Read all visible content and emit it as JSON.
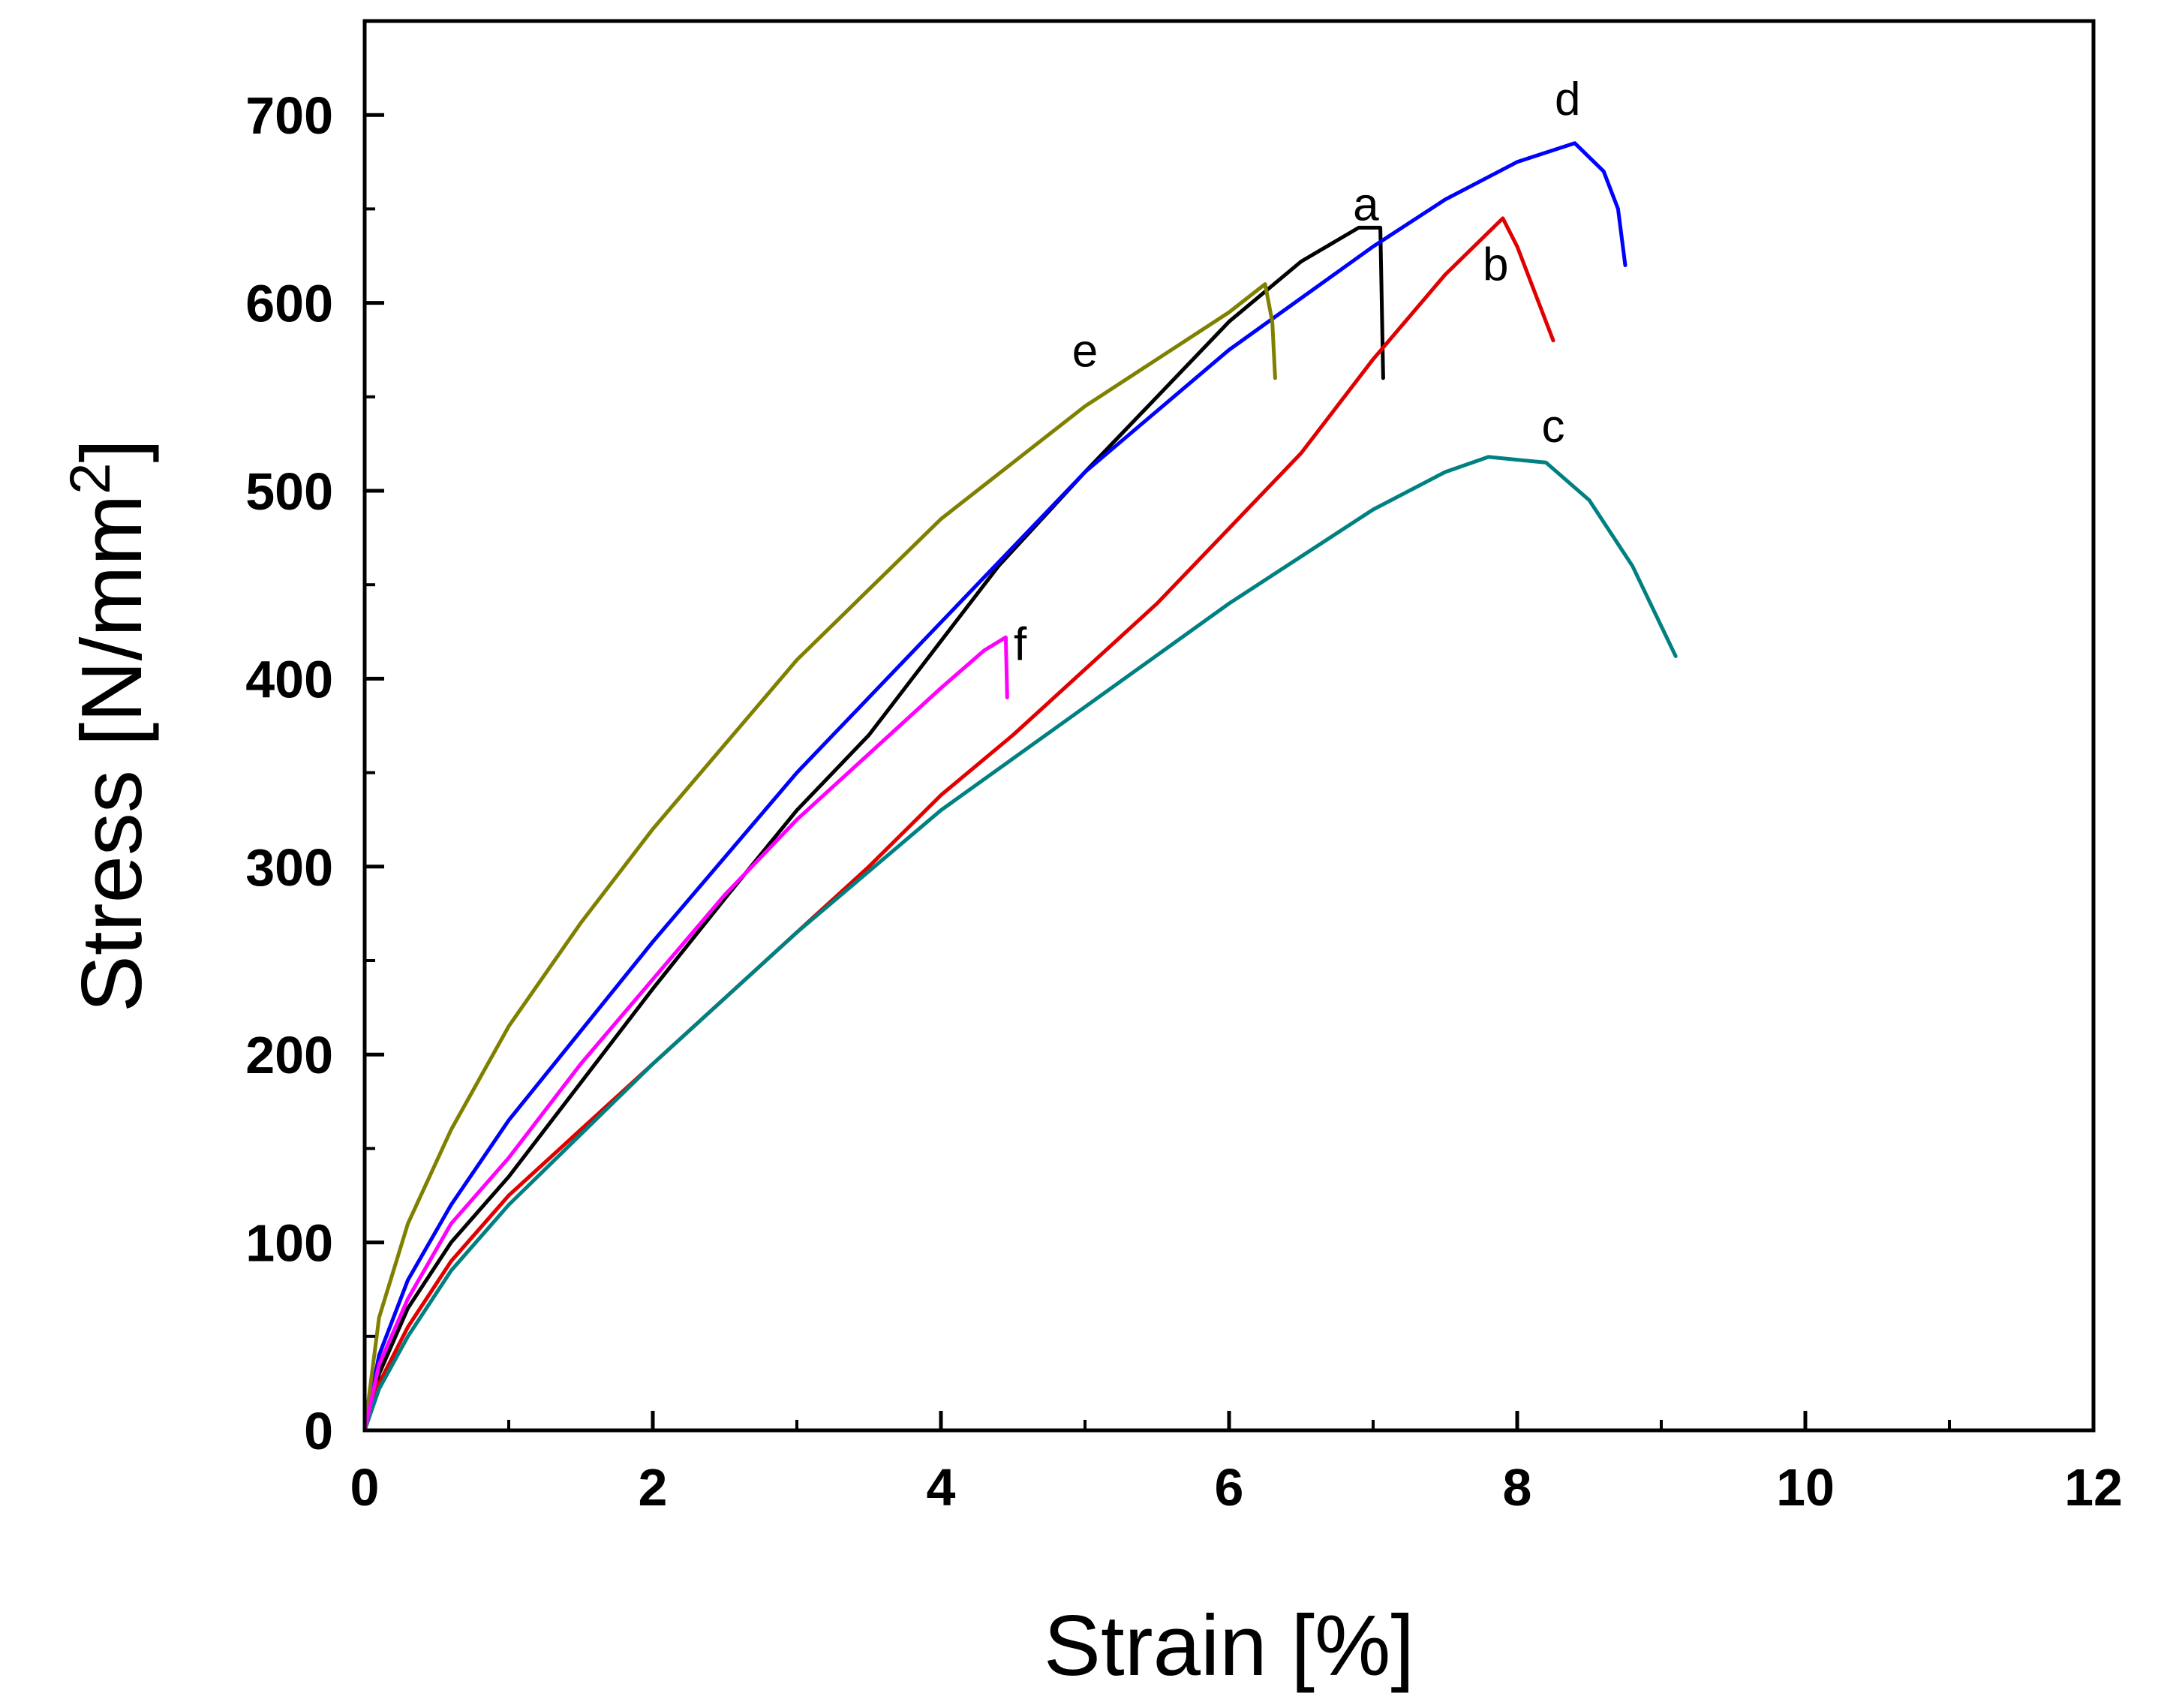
{
  "chart_data": {
    "type": "line",
    "title": "",
    "xlabel": "Strain [%]",
    "ylabel_main": "Stress [N/mm",
    "ylabel_sup": "2",
    "ylabel_close": "]",
    "xlim": [
      0,
      12
    ],
    "ylim": [
      0,
      750
    ],
    "xticks": [
      "0",
      "2",
      "4",
      "6",
      "8",
      "10",
      "12"
    ],
    "yticks": [
      "0",
      "100",
      "200",
      "300",
      "400",
      "500",
      "600",
      "700"
    ],
    "grid": false,
    "series": [
      {
        "name": "a",
        "color": "#000000",
        "label_at": [
          6.95,
          644
        ],
        "points": [
          [
            0,
            0
          ],
          [
            0.1,
            30
          ],
          [
            0.3,
            65
          ],
          [
            0.6,
            100
          ],
          [
            1.0,
            135
          ],
          [
            1.5,
            185
          ],
          [
            2.0,
            235
          ],
          [
            2.5,
            283
          ],
          [
            3.0,
            330
          ],
          [
            3.5,
            370
          ],
          [
            3.8,
            400
          ],
          [
            4.0,
            420
          ],
          [
            4.4,
            460
          ],
          [
            5.0,
            510
          ],
          [
            5.5,
            550
          ],
          [
            6.0,
            590
          ],
          [
            6.5,
            622
          ],
          [
            6.9,
            640
          ],
          [
            7.05,
            640
          ],
          [
            7.07,
            560
          ]
        ]
      },
      {
        "name": "b",
        "color": "#e00000",
        "label_at": [
          7.85,
          612
        ],
        "points": [
          [
            0,
            0
          ],
          [
            0.1,
            25
          ],
          [
            0.3,
            55
          ],
          [
            0.6,
            90
          ],
          [
            1.0,
            125
          ],
          [
            2.0,
            195
          ],
          [
            3.0,
            265
          ],
          [
            3.5,
            300
          ],
          [
            4.0,
            338
          ],
          [
            4.5,
            370
          ],
          [
            5.0,
            405
          ],
          [
            5.5,
            440
          ],
          [
            6.0,
            480
          ],
          [
            6.5,
            520
          ],
          [
            7.0,
            570
          ],
          [
            7.5,
            615
          ],
          [
            7.9,
            645
          ],
          [
            8.0,
            630
          ],
          [
            8.15,
            600
          ],
          [
            8.25,
            580
          ]
        ]
      },
      {
        "name": "c",
        "color": "#008080",
        "label_at": [
          8.25,
          526
        ],
        "points": [
          [
            0,
            0
          ],
          [
            0.1,
            22
          ],
          [
            0.3,
            50
          ],
          [
            0.6,
            85
          ],
          [
            1.0,
            120
          ],
          [
            2.0,
            195
          ],
          [
            3.0,
            265
          ],
          [
            4.0,
            330
          ],
          [
            5.0,
            385
          ],
          [
            6.0,
            440
          ],
          [
            7.0,
            490
          ],
          [
            7.5,
            510
          ],
          [
            7.8,
            518
          ],
          [
            8.2,
            515
          ],
          [
            8.5,
            495
          ],
          [
            8.8,
            460
          ],
          [
            9.1,
            412
          ]
        ]
      },
      {
        "name": "d",
        "color": "#0000ff",
        "label_at": [
          8.35,
          700
        ],
        "points": [
          [
            0,
            0
          ],
          [
            0.1,
            40
          ],
          [
            0.3,
            80
          ],
          [
            0.6,
            120
          ],
          [
            1.0,
            165
          ],
          [
            2.0,
            260
          ],
          [
            3.0,
            350
          ],
          [
            4.0,
            430
          ],
          [
            5.0,
            510
          ],
          [
            6.0,
            575
          ],
          [
            7.0,
            630
          ],
          [
            7.5,
            655
          ],
          [
            8.0,
            675
          ],
          [
            8.4,
            685
          ],
          [
            8.6,
            670
          ],
          [
            8.7,
            650
          ],
          [
            8.75,
            620
          ]
        ]
      },
      {
        "name": "e",
        "color": "#808000",
        "label_at": [
          5.0,
          566
        ],
        "points": [
          [
            0,
            0
          ],
          [
            0.1,
            60
          ],
          [
            0.3,
            110
          ],
          [
            0.6,
            160
          ],
          [
            1.0,
            215
          ],
          [
            1.5,
            270
          ],
          [
            2.0,
            320
          ],
          [
            3.0,
            410
          ],
          [
            4.0,
            485
          ],
          [
            5.0,
            545
          ],
          [
            5.5,
            570
          ],
          [
            6.0,
            595
          ],
          [
            6.25,
            610
          ],
          [
            6.3,
            590
          ],
          [
            6.32,
            560
          ]
        ]
      },
      {
        "name": "f",
        "color": "#ff00ff",
        "label_at": [
          4.55,
          410
        ],
        "points": [
          [
            0,
            0
          ],
          [
            0.1,
            35
          ],
          [
            0.3,
            70
          ],
          [
            0.6,
            110
          ],
          [
            1.0,
            145
          ],
          [
            1.5,
            195
          ],
          [
            2.0,
            240
          ],
          [
            2.5,
            285
          ],
          [
            3.0,
            325
          ],
          [
            3.5,
            360
          ],
          [
            4.0,
            395
          ],
          [
            4.3,
            415
          ],
          [
            4.45,
            422
          ],
          [
            4.46,
            390
          ]
        ]
      }
    ]
  }
}
